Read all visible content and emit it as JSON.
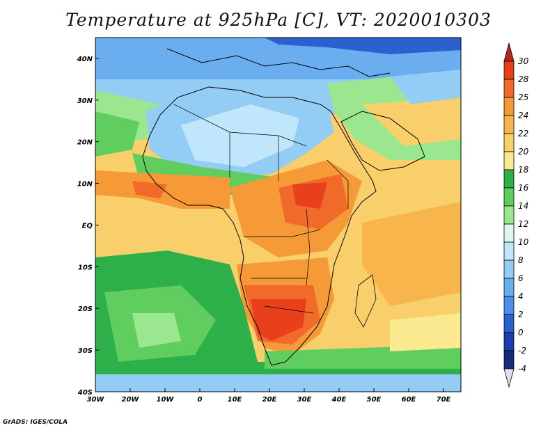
{
  "title": "Temperature at 925hPa [C], VT: 2020010303",
  "credit": "GrADS: IGES/COLA",
  "map": {
    "lon_range": [
      -30,
      75
    ],
    "lat_range": [
      -40,
      45
    ],
    "lon_ticks": [
      "30W",
      "20W",
      "10W",
      "0",
      "10E",
      "20E",
      "30E",
      "40E",
      "50E",
      "60E",
      "70E"
    ],
    "lat_ticks": [
      "40N",
      "30N",
      "20N",
      "10N",
      "EQ",
      "10S",
      "20S",
      "30S",
      "40S"
    ],
    "colorbar": {
      "labels": [
        "30",
        "28",
        "25",
        "24",
        "22",
        "20",
        "18",
        "16",
        "14",
        "12",
        "10",
        "8",
        "6",
        "4",
        "2",
        "0",
        "-2",
        "-4"
      ],
      "colors": [
        "#b3271d",
        "#e8401a",
        "#f06a2a",
        "#f59a36",
        "#f7b54c",
        "#f8cf6a",
        "#fbe98f",
        "#2db04a",
        "#5fce5f",
        "#9be78f",
        "#ddf7ef",
        "#bfe6fb",
        "#93cdf5",
        "#6aaef0",
        "#4a90e6",
        "#2a60d0",
        "#1c3fb0",
        "#1a2a7a",
        "#ddddf5"
      ]
    }
  }
}
